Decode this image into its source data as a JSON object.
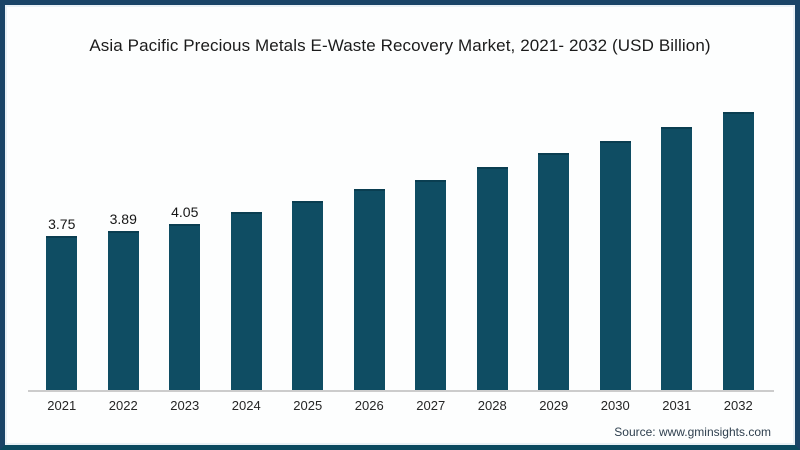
{
  "frame": {
    "border_color": "#1a4467",
    "bottom_border_color": "#0b4a5f",
    "inner_line_color": "#e9f1f6",
    "background": "#fdfefe"
  },
  "source": "Source: www.gminsights.com",
  "chart_data": {
    "type": "bar",
    "title": "Asia Pacific Precious Metals E-Waste Recovery Market, 2021- 2032 (USD Billion)",
    "categories": [
      "2021",
      "2022",
      "2023",
      "2024",
      "2025",
      "2026",
      "2027",
      "2028",
      "2029",
      "2030",
      "2031",
      "2032"
    ],
    "values": [
      3.75,
      3.89,
      4.05,
      4.35,
      4.62,
      4.9,
      5.12,
      5.44,
      5.78,
      6.08,
      6.42,
      6.79
    ],
    "data_labels": [
      "3.75",
      "3.89",
      "4.05",
      "",
      "",
      "",
      "",
      "",
      "",
      "",
      "",
      ""
    ],
    "xlabel": "",
    "ylabel": "",
    "ylim": [
      0,
      7
    ],
    "grid": false,
    "legend": false,
    "bar_color": "#0f4d63",
    "bar_top_edge_color": "#0a3e51",
    "axis_line_color": "#cccccc",
    "title_color": "#1b1b1b",
    "label_color": "#161616",
    "tick_color": "#262626",
    "source_color": "#2e3f4e"
  }
}
